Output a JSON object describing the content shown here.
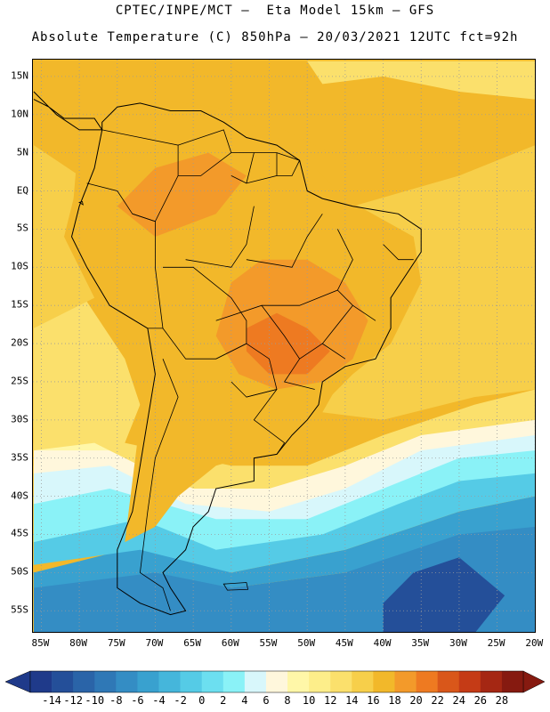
{
  "title_line1": "CPTEC/INPE/MCT –  Eta Model 15km – GFS",
  "title_line2": "Absolute Temperature (C) 850hPa – 20/03/2021 12UTC fct=92h",
  "lat_ticks": [
    {
      "label": "15N",
      "value": 15
    },
    {
      "label": "10N",
      "value": 10
    },
    {
      "label": "5N",
      "value": 5
    },
    {
      "label": "EQ",
      "value": 0
    },
    {
      "label": "5S",
      "value": -5
    },
    {
      "label": "10S",
      "value": -10
    },
    {
      "label": "15S",
      "value": -15
    },
    {
      "label": "20S",
      "value": -20
    },
    {
      "label": "25S",
      "value": -25
    },
    {
      "label": "30S",
      "value": -30
    },
    {
      "label": "35S",
      "value": -35
    },
    {
      "label": "40S",
      "value": -40
    },
    {
      "label": "45S",
      "value": -45
    },
    {
      "label": "50S",
      "value": -50
    },
    {
      "label": "55S",
      "value": -55
    }
  ],
  "lon_ticks": [
    {
      "label": "85W",
      "value": -85
    },
    {
      "label": "80W",
      "value": -80
    },
    {
      "label": "75W",
      "value": -75
    },
    {
      "label": "70W",
      "value": -70
    },
    {
      "label": "65W",
      "value": -65
    },
    {
      "label": "60W",
      "value": -60
    },
    {
      "label": "55W",
      "value": -55
    },
    {
      "label": "50W",
      "value": -50
    },
    {
      "label": "45W",
      "value": -45
    },
    {
      "label": "40W",
      "value": -40
    },
    {
      "label": "35W",
      "value": -35
    },
    {
      "label": "30W",
      "value": -30
    },
    {
      "label": "25W",
      "value": -25
    },
    {
      "label": "20W",
      "value": -20
    }
  ],
  "map_extent": {
    "lon_min": -86.1,
    "lon_max": -19.8,
    "lat_min": -58.0,
    "lat_max": 17.2
  },
  "colorbar": {
    "labels": [
      "-14",
      "-12",
      "-10",
      "-8",
      "-6",
      "-4",
      "-2",
      "0",
      "2",
      "4",
      "6",
      "8",
      "10",
      "12",
      "14",
      "16",
      "18",
      "20",
      "22",
      "24",
      "26",
      "28"
    ],
    "colors": [
      "#1f3a8a",
      "#244f99",
      "#2a64a8",
      "#2f78b6",
      "#348dc4",
      "#39a1cf",
      "#45b6db",
      "#55cbe6",
      "#6cdff0",
      "#8af2f7",
      "#d8f7fb",
      "#fff7dc",
      "#fff7a8",
      "#fdee8a",
      "#fbe06c",
      "#f7cf4a",
      "#f2b82a",
      "#f39a2a",
      "#ee7a21",
      "#d9571a",
      "#c53b16",
      "#a52713",
      "#861a10"
    ]
  },
  "regions": [
    {
      "name": "far-south-cold",
      "color": "#348dc4",
      "points": [
        [
          -86,
          -58
        ],
        [
          -20,
          -58
        ],
        [
          -20,
          -44
        ],
        [
          -30,
          -44
        ],
        [
          -45,
          -50
        ],
        [
          -60,
          -52
        ],
        [
          -70,
          -48
        ],
        [
          -86,
          -50
        ]
      ]
    },
    {
      "name": "deep-cold-core",
      "color": "#244f99",
      "points": [
        [
          -40,
          -58
        ],
        [
          -28,
          -58
        ],
        [
          -24,
          -53
        ],
        [
          -30,
          -48
        ],
        [
          -36,
          -50
        ],
        [
          -40,
          -54
        ]
      ]
    },
    {
      "name": "cold-south-2",
      "color": "#39a1cf",
      "points": [
        [
          -86,
          -50
        ],
        [
          -70,
          -46
        ],
        [
          -60,
          -50
        ],
        [
          -45,
          -47
        ],
        [
          -30,
          -42
        ],
        [
          -20,
          -40
        ],
        [
          -20,
          -44
        ],
        [
          -30,
          -45
        ],
        [
          -45,
          -50
        ],
        [
          -60,
          -52
        ],
        [
          -70,
          -50
        ],
        [
          -86,
          -52
        ]
      ]
    },
    {
      "name": "cyan-band",
      "color": "#55cbe6",
      "points": [
        [
          -86,
          -45
        ],
        [
          -72,
          -42
        ],
        [
          -62,
          -46
        ],
        [
          -48,
          -44
        ],
        [
          -38,
          -40
        ],
        [
          -30,
          -38
        ],
        [
          -20,
          -36
        ],
        [
          -20,
          -40
        ],
        [
          -30,
          -42
        ],
        [
          -45,
          -47
        ],
        [
          -60,
          -50
        ],
        [
          -72,
          -47
        ],
        [
          -86,
          -49
        ]
      ]
    },
    {
      "name": "light-cyan-band",
      "color": "#8af2f7",
      "points": [
        [
          -86,
          -40
        ],
        [
          -76,
          -38
        ],
        [
          -62,
          -42
        ],
        [
          -50,
          -42
        ],
        [
          -40,
          -38
        ],
        [
          -30,
          -34
        ],
        [
          -20,
          -33
        ],
        [
          -20,
          -37
        ],
        [
          -30,
          -38
        ],
        [
          -38,
          -41
        ],
        [
          -48,
          -45
        ],
        [
          -62,
          -47
        ],
        [
          -72,
          -43
        ],
        [
          -86,
          -46
        ]
      ]
    },
    {
      "name": "pale-band",
      "color": "#d8f7fb",
      "points": [
        [
          -86,
          -36
        ],
        [
          -76,
          -35
        ],
        [
          -66,
          -40
        ],
        [
          -55,
          -42
        ],
        [
          -45,
          -38
        ],
        [
          -35,
          -33
        ],
        [
          -20,
          -31
        ],
        [
          -20,
          -34
        ],
        [
          -30,
          -35
        ],
        [
          -40,
          -39
        ],
        [
          -50,
          -43
        ],
        [
          -62,
          -43
        ],
        [
          -76,
          -39
        ],
        [
          -86,
          -41
        ]
      ]
    },
    {
      "name": "cream-band",
      "color": "#fff7dc",
      "points": [
        [
          -86,
          -33
        ],
        [
          -78,
          -32
        ],
        [
          -72,
          -36
        ],
        [
          -62,
          -38
        ],
        [
          -55,
          -38
        ],
        [
          -45,
          -35
        ],
        [
          -35,
          -31
        ],
        [
          -20,
          -29
        ],
        [
          -20,
          -32
        ],
        [
          -35,
          -34
        ],
        [
          -45,
          -39
        ],
        [
          -55,
          -42
        ],
        [
          -66,
          -41
        ],
        [
          -76,
          -36
        ],
        [
          -86,
          -37
        ]
      ]
    },
    {
      "name": "pacific-cool-coast",
      "color": "#fff7a8",
      "points": [
        [
          -86,
          -16
        ],
        [
          -80,
          -18
        ],
        [
          -76,
          -24
        ],
        [
          -74,
          -30
        ],
        [
          -76,
          -34
        ],
        [
          -86,
          -34
        ]
      ]
    },
    {
      "name": "pacific-cream",
      "color": "#fff7dc",
      "points": [
        [
          -86,
          -20
        ],
        [
          -80,
          -21
        ],
        [
          -77,
          -26
        ],
        [
          -76,
          -31
        ],
        [
          -86,
          -31
        ]
      ]
    },
    {
      "name": "yellow-mid",
      "color": "#fbe06c",
      "points": [
        [
          -86,
          -6
        ],
        [
          -82,
          -10
        ],
        [
          -78,
          -16
        ],
        [
          -74,
          -22
        ],
        [
          -72,
          -28
        ],
        [
          -74,
          -33
        ],
        [
          -60,
          -36
        ],
        [
          -50,
          -36
        ],
        [
          -40,
          -32
        ],
        [
          -28,
          -28
        ],
        [
          -20,
          -26
        ],
        [
          -20,
          -30
        ],
        [
          -35,
          -32
        ],
        [
          -45,
          -36
        ],
        [
          -55,
          -39
        ],
        [
          -65,
          -39
        ],
        [
          -72,
          -36
        ],
        [
          -78,
          -33
        ],
        [
          -86,
          -34
        ]
      ]
    },
    {
      "name": "atlantic-warm",
      "color": "#f7cf4a",
      "points": [
        [
          -44,
          -2
        ],
        [
          -30,
          2
        ],
        [
          -20,
          6
        ],
        [
          -20,
          -26
        ],
        [
          -28,
          -27
        ],
        [
          -40,
          -30
        ],
        [
          -48,
          -29
        ],
        [
          -44,
          -22
        ],
        [
          -40,
          -15
        ],
        [
          -36,
          -8
        ]
      ]
    },
    {
      "name": "pacific-warm",
      "color": "#f7cf4a",
      "points": [
        [
          -86,
          6
        ],
        [
          -80,
          2
        ],
        [
          -82,
          -6
        ],
        [
          -78,
          -14
        ],
        [
          -86,
          -18
        ]
      ]
    },
    {
      "name": "continent-orange",
      "color": "#f2b82a",
      "points": [
        [
          -80,
          8
        ],
        [
          -77,
          12
        ],
        [
          -70,
          12
        ],
        [
          -62,
          11
        ],
        [
          -52,
          6
        ],
        [
          -45,
          -1
        ],
        [
          -36,
          -6
        ],
        [
          -35,
          -12
        ],
        [
          -39,
          -20
        ],
        [
          -44,
          -24
        ],
        [
          -50,
          -30
        ],
        [
          -55,
          -34
        ],
        [
          -62,
          -36
        ],
        [
          -67,
          -40
        ],
        [
          -70,
          -44
        ],
        [
          -74,
          -46
        ],
        [
          -73,
          -38
        ],
        [
          -72,
          -30
        ],
        [
          -72,
          -22
        ],
        [
          -78,
          -12
        ],
        [
          -81,
          -4
        ]
      ]
    },
    {
      "name": "north-ocean-orange",
      "color": "#f2b82a",
      "points": [
        [
          -86,
          17
        ],
        [
          -30,
          17
        ],
        [
          -20,
          14
        ],
        [
          -20,
          8
        ],
        [
          -35,
          4
        ],
        [
          -45,
          4
        ],
        [
          -55,
          9
        ],
        [
          -62,
          11
        ],
        [
          -70,
          12
        ],
        [
          -80,
          9
        ],
        [
          -86,
          8
        ]
      ]
    },
    {
      "name": "central-hot",
      "color": "#f39a2a",
      "points": [
        [
          -60,
          -12
        ],
        [
          -56,
          -9
        ],
        [
          -50,
          -9
        ],
        [
          -45,
          -12
        ],
        [
          -42,
          -17
        ],
        [
          -44,
          -22
        ],
        [
          -48,
          -25
        ],
        [
          -54,
          -26
        ],
        [
          -59,
          -24
        ],
        [
          -62,
          -19
        ]
      ]
    },
    {
      "name": "amazon-hot",
      "color": "#f39a2a",
      "points": [
        [
          -75,
          -2
        ],
        [
          -70,
          3
        ],
        [
          -63,
          5
        ],
        [
          -58,
          2
        ],
        [
          -62,
          -3
        ],
        [
          -70,
          -6
        ]
      ]
    },
    {
      "name": "hot-core",
      "color": "#ee7a21",
      "points": [
        [
          -58,
          -18
        ],
        [
          -54,
          -16
        ],
        [
          -50,
          -18
        ],
        [
          -47,
          -21
        ],
        [
          -50,
          -24
        ],
        [
          -55,
          -24
        ],
        [
          -58,
          -21
        ]
      ]
    },
    {
      "name": "caribbean-yellow",
      "color": "#fbe06c",
      "points": [
        [
          -50,
          17
        ],
        [
          -20,
          17
        ],
        [
          -20,
          12
        ],
        [
          -30,
          13
        ],
        [
          -40,
          15
        ],
        [
          -48,
          14
        ]
      ]
    }
  ],
  "coastline": [
    [
      -77,
      8
    ],
    [
      -78,
      3
    ],
    [
      -80,
      -2
    ],
    [
      -81,
      -6
    ],
    [
      -79,
      -10
    ],
    [
      -76,
      -15
    ],
    [
      -71,
      -18
    ],
    [
      -70,
      -24
    ],
    [
      -71,
      -30
    ],
    [
      -72,
      -36
    ],
    [
      -73,
      -42
    ],
    [
      -75,
      -47
    ],
    [
      -75,
      -52
    ],
    [
      -72,
      -54
    ],
    [
      -68,
      -55.5
    ],
    [
      -66,
      -55
    ],
    [
      -68,
      -52
    ],
    [
      -69,
      -50
    ],
    [
      -66,
      -47
    ],
    [
      -65,
      -44
    ],
    [
      -63,
      -42
    ],
    [
      -62,
      -39
    ],
    [
      -57,
      -38
    ],
    [
      -57,
      -35
    ],
    [
      -54,
      -34.5
    ],
    [
      -52,
      -32
    ],
    [
      -50,
      -30
    ],
    [
      -48.5,
      -28
    ],
    [
      -48,
      -25
    ],
    [
      -45,
      -23
    ],
    [
      -41,
      -22
    ],
    [
      -39,
      -18
    ],
    [
      -39,
      -14
    ],
    [
      -37,
      -11
    ],
    [
      -35,
      -8
    ],
    [
      -35,
      -5
    ],
    [
      -38,
      -3
    ],
    [
      -41,
      -2.5
    ],
    [
      -44,
      -2
    ],
    [
      -48,
      -1
    ],
    [
      -50,
      0
    ],
    [
      -51,
      4
    ],
    [
      -54,
      6
    ],
    [
      -58,
      7
    ],
    [
      -61,
      9
    ],
    [
      -64,
      10.5
    ],
    [
      -68,
      10.5
    ],
    [
      -72,
      11.5
    ],
    [
      -75,
      11
    ],
    [
      -77,
      9
    ]
  ],
  "central_america": [
    [
      -86,
      13
    ],
    [
      -83,
      10
    ],
    [
      -80,
      8
    ],
    [
      -77,
      8
    ],
    [
      -78,
      9.5
    ],
    [
      -82,
      9.5
    ],
    [
      -84,
      11
    ],
    [
      -86,
      12
    ]
  ],
  "borders": [
    [
      [
        -77,
        8
      ],
      [
        -72,
        7
      ],
      [
        -67,
        6
      ],
      [
        -67,
        2
      ],
      [
        -70,
        -4
      ],
      [
        -73,
        -3
      ],
      [
        -75,
        0
      ],
      [
        -79,
        1
      ]
    ],
    [
      [
        -67,
        6
      ],
      [
        -61,
        8
      ],
      [
        -60,
        5
      ],
      [
        -64,
        2
      ],
      [
        -67,
        2
      ]
    ],
    [
      [
        -60,
        5
      ],
      [
        -57,
        5
      ],
      [
        -58,
        1
      ],
      [
        -60,
        2
      ]
    ],
    [
      [
        -57,
        5
      ],
      [
        -54,
        5
      ],
      [
        -54,
        2
      ],
      [
        -58,
        1
      ]
    ],
    [
      [
        -54,
        5
      ],
      [
        -51,
        4
      ],
      [
        -52,
        2
      ],
      [
        -54,
        2
      ]
    ],
    [
      [
        -73,
        -3
      ],
      [
        -70,
        -4
      ],
      [
        -70,
        -10
      ],
      [
        -69,
        -18
      ],
      [
        -71,
        -18
      ]
    ],
    [
      [
        -69,
        -10
      ],
      [
        -65,
        -10
      ],
      [
        -60,
        -14
      ],
      [
        -58,
        -17
      ],
      [
        -58,
        -20
      ],
      [
        -62,
        -22
      ],
      [
        -66,
        -22
      ],
      [
        -69,
        -18
      ]
    ],
    [
      [
        -62,
        -22
      ],
      [
        -58,
        -20
      ],
      [
        -55,
        -22
      ],
      [
        -54,
        -26
      ],
      [
        -58,
        -27
      ],
      [
        -60,
        -25
      ]
    ],
    [
      [
        -54,
        -26
      ],
      [
        -57,
        -30
      ],
      [
        -53,
        -33
      ],
      [
        -54,
        -34.5
      ]
    ],
    [
      [
        -69,
        -22
      ],
      [
        -67,
        -27
      ],
      [
        -70,
        -35
      ],
      [
        -71,
        -42
      ],
      [
        -72,
        -50
      ],
      [
        -69,
        -52
      ],
      [
        -68,
        -55
      ]
    ],
    [
      [
        -58,
        -27
      ],
      [
        -54,
        -26
      ]
    ],
    [
      [
        -62,
        -17
      ],
      [
        -56,
        -15
      ],
      [
        -51,
        -15
      ],
      [
        -46,
        -13
      ],
      [
        -44,
        -9
      ],
      [
        -46,
        -5
      ]
    ],
    [
      [
        -56,
        -15
      ],
      [
        -53,
        -19
      ],
      [
        -51,
        -22
      ],
      [
        -48,
        -20
      ]
    ],
    [
      [
        -51,
        -22
      ],
      [
        -53,
        -25
      ],
      [
        -49,
        -26
      ]
    ],
    [
      [
        -46,
        -13
      ],
      [
        -44,
        -15
      ],
      [
        -41,
        -17
      ]
    ],
    [
      [
        -44,
        -15
      ],
      [
        -48,
        -20
      ],
      [
        -45,
        -22
      ]
    ],
    [
      [
        -58,
        -9
      ],
      [
        -52,
        -10
      ],
      [
        -50,
        -6
      ],
      [
        -48,
        -3
      ]
    ],
    [
      [
        -66,
        -9
      ],
      [
        -60,
        -10
      ],
      [
        -58,
        -7
      ],
      [
        -57,
        -2
      ]
    ],
    [
      [
        -40,
        -7
      ],
      [
        -38,
        -9
      ],
      [
        -36,
        -9
      ]
    ]
  ],
  "islands": [
    [
      [
        -61,
        -51.5
      ],
      [
        -58,
        -51.3
      ],
      [
        -57.8,
        -52.2
      ],
      [
        -60.5,
        -52.3
      ]
    ],
    [
      [
        -80,
        -1.5
      ],
      [
        -79.6,
        -1.4
      ],
      [
        -79.5,
        -1.8
      ]
    ]
  ]
}
